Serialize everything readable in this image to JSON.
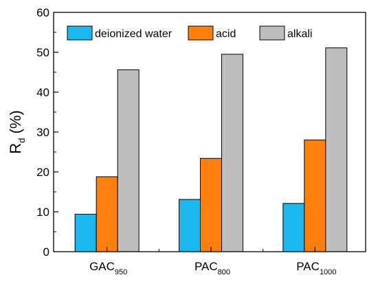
{
  "chart_data": {
    "type": "bar",
    "categories": [
      {
        "base": "GAC",
        "sub": "950"
      },
      {
        "base": "PAC",
        "sub": "800"
      },
      {
        "base": "PAC",
        "sub": "1000"
      }
    ],
    "series": [
      {
        "name": "deionized water",
        "color": "#1ab8ee",
        "values": [
          9.4,
          13.1,
          12.1
        ]
      },
      {
        "name": "acid",
        "color": "#ff7f0e",
        "values": [
          18.8,
          23.4,
          28.0
        ]
      },
      {
        "name": "alkali",
        "color": "#bebebe",
        "values": [
          45.6,
          49.5,
          51.1
        ]
      }
    ],
    "ylabel": {
      "base": "R",
      "sub": "d",
      "suffix": " (%)"
    },
    "xlabel": "",
    "ylim": [
      0,
      60
    ],
    "yticks": [
      0,
      10,
      20,
      30,
      40,
      50,
      60
    ],
    "grid": false,
    "legend_placement": "top-inside"
  }
}
